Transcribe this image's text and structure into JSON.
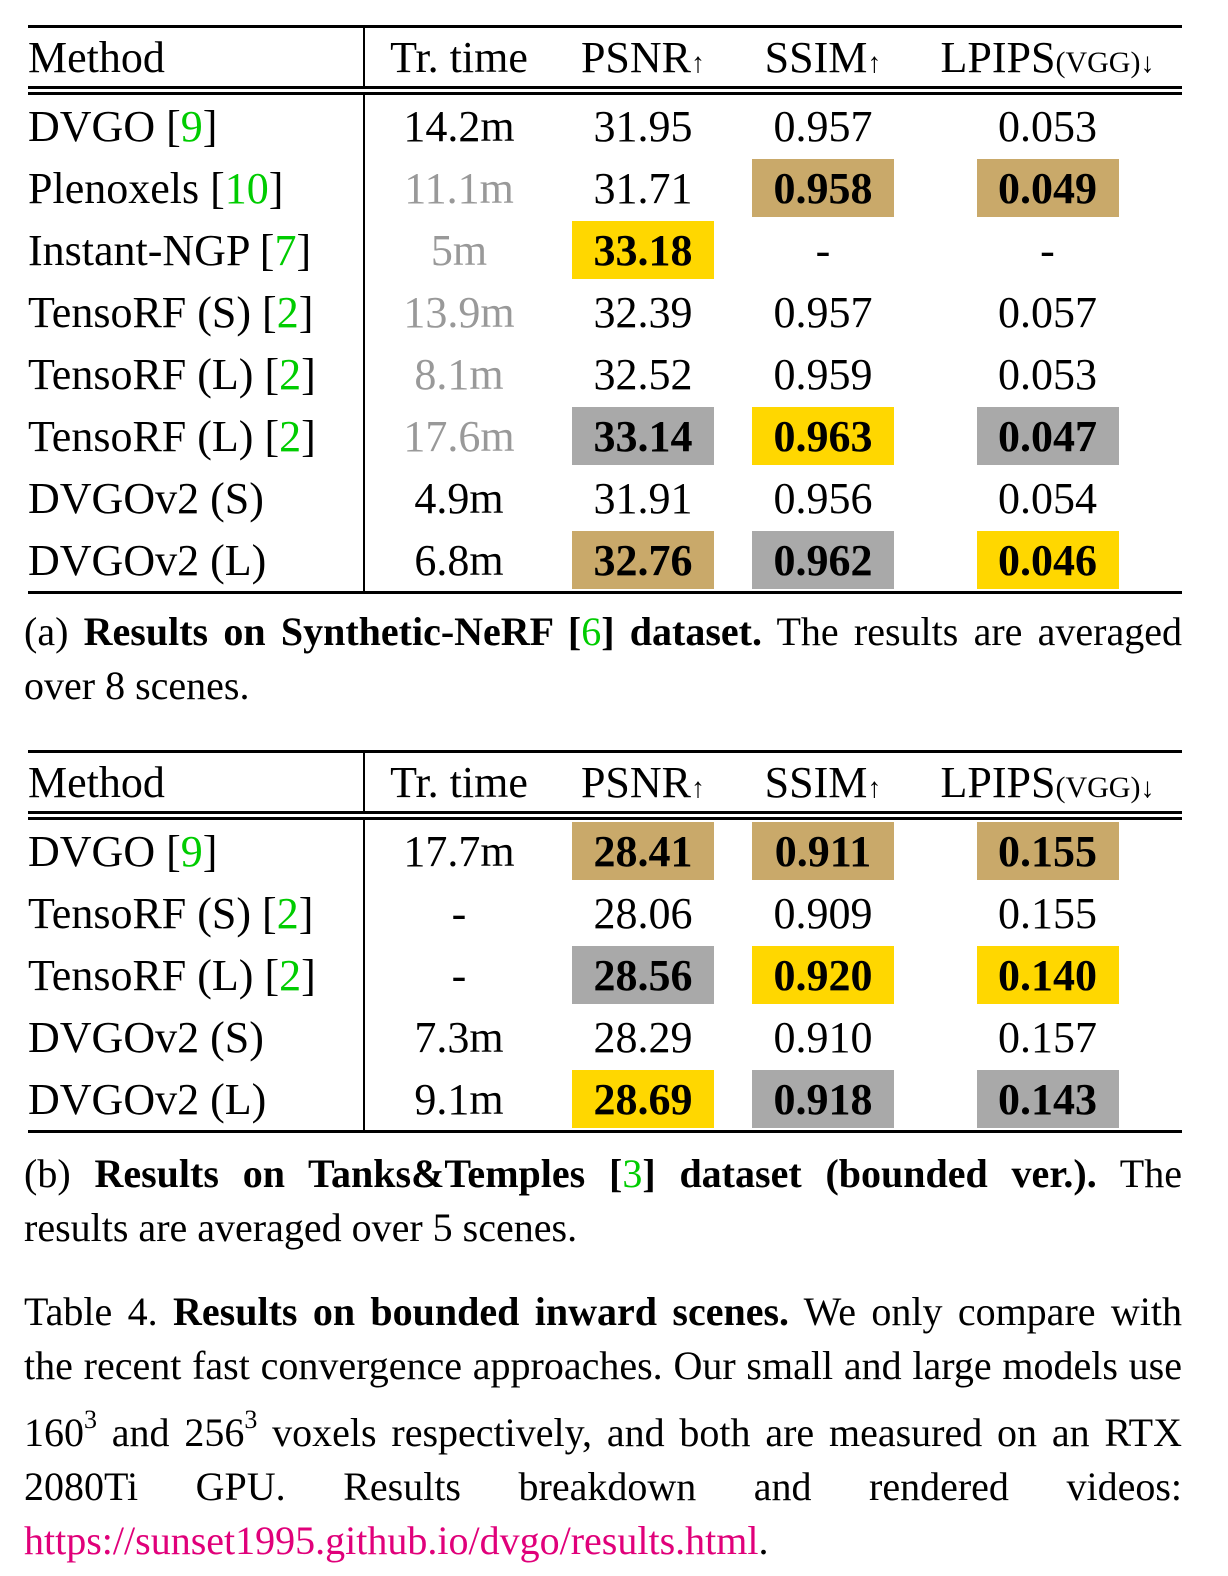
{
  "tables": [
    {
      "header": [
        [
          {
            "text": "Method"
          }
        ],
        [
          {
            "text": "Tr. time"
          }
        ],
        [
          {
            "text": "PSNR"
          },
          {
            "text": "↑",
            "style": "arrow"
          }
        ],
        [
          {
            "text": "SSIM"
          },
          {
            "text": "↑",
            "style": "arrow"
          }
        ],
        [
          {
            "text": "LPIPS"
          },
          {
            "text": "(VGG)",
            "style": "small"
          },
          {
            "text": "↓",
            "style": "arrow"
          }
        ]
      ],
      "rows": [
        {
          "method": [
            {
              "text": "DVGO ["
            },
            {
              "text": "9",
              "style": "cite"
            },
            {
              "text": "]"
            }
          ],
          "cells": [
            {
              "text": "14.2m"
            },
            {
              "text": "31.95"
            },
            {
              "text": "0.957"
            },
            {
              "text": "0.053"
            }
          ]
        },
        {
          "method": [
            {
              "text": "Plenoxels ["
            },
            {
              "text": "10",
              "style": "cite"
            },
            {
              "text": "]"
            }
          ],
          "cells": [
            {
              "text": "11.1m",
              "color": "#999999"
            },
            {
              "text": "31.71"
            },
            {
              "text": "0.958",
              "highlight": "#c9a96a"
            },
            {
              "text": "0.049",
              "highlight": "#c9a96a"
            }
          ]
        },
        {
          "method": [
            {
              "text": "Instant-NGP ["
            },
            {
              "text": "7",
              "style": "cite"
            },
            {
              "text": "]"
            }
          ],
          "cells": [
            {
              "text": "5m",
              "color": "#999999"
            },
            {
              "text": "33.18",
              "highlight": "#ffd700"
            },
            {
              "text": "-"
            },
            {
              "text": "-"
            }
          ]
        },
        {
          "method": [
            {
              "text": "TensoRF (S) ["
            },
            {
              "text": "2",
              "style": "cite"
            },
            {
              "text": "]"
            }
          ],
          "cells": [
            {
              "text": "13.9m",
              "color": "#999999"
            },
            {
              "text": "32.39"
            },
            {
              "text": "0.957"
            },
            {
              "text": "0.057"
            }
          ]
        },
        {
          "method": [
            {
              "text": "TensoRF (L) ["
            },
            {
              "text": "2",
              "style": "cite"
            },
            {
              "text": "]"
            }
          ],
          "cells": [
            {
              "text": "8.1m",
              "color": "#999999"
            },
            {
              "text": "32.52"
            },
            {
              "text": "0.959"
            },
            {
              "text": "0.053"
            }
          ]
        },
        {
          "method": [
            {
              "text": "TensoRF (L) ["
            },
            {
              "text": "2",
              "style": "cite"
            },
            {
              "text": "]"
            }
          ],
          "cells": [
            {
              "text": "17.6m",
              "color": "#999999"
            },
            {
              "text": "33.14",
              "highlight": "#a9a9a9"
            },
            {
              "text": "0.963",
              "highlight": "#ffd700"
            },
            {
              "text": "0.047",
              "highlight": "#a9a9a9"
            }
          ]
        },
        {
          "method": [
            {
              "text": "DVGOv2 (S)"
            }
          ],
          "cells": [
            {
              "text": "4.9m"
            },
            {
              "text": "31.91"
            },
            {
              "text": "0.956"
            },
            {
              "text": "0.054"
            }
          ]
        },
        {
          "method": [
            {
              "text": "DVGOv2 (L)"
            }
          ],
          "cells": [
            {
              "text": "6.8m"
            },
            {
              "text": "32.76",
              "highlight": "#c9a96a"
            },
            {
              "text": "0.962",
              "highlight": "#a9a9a9"
            },
            {
              "text": "0.046",
              "highlight": "#ffd700"
            }
          ]
        }
      ],
      "caption": [
        {
          "text": "(a) "
        },
        {
          "text": "Results on Synthetic-NeRF [",
          "style": "bold"
        },
        {
          "text": "6",
          "style": "cite"
        },
        {
          "text": "] dataset.",
          "style": "bold"
        },
        {
          "text": " The results are aver­aged over 8 scenes."
        }
      ]
    },
    {
      "header": [
        [
          {
            "text": "Method"
          }
        ],
        [
          {
            "text": "Tr. time"
          }
        ],
        [
          {
            "text": "PSNR"
          },
          {
            "text": "↑",
            "style": "arrow"
          }
        ],
        [
          {
            "text": "SSIM"
          },
          {
            "text": "↑",
            "style": "arrow"
          }
        ],
        [
          {
            "text": "LPIPS"
          },
          {
            "text": "(VGG)",
            "style": "small"
          },
          {
            "text": "↓",
            "style": "arrow"
          }
        ]
      ],
      "rows": [
        {
          "method": [
            {
              "text": "DVGO ["
            },
            {
              "text": "9",
              "style": "cite"
            },
            {
              "text": "]"
            }
          ],
          "cells": [
            {
              "text": "17.7m"
            },
            {
              "text": "28.41",
              "highlight": "#c9a96a"
            },
            {
              "text": "0.911",
              "highlight": "#c9a96a"
            },
            {
              "text": "0.155",
              "highlight": "#c9a96a"
            }
          ]
        },
        {
          "method": [
            {
              "text": "TensoRF (S) ["
            },
            {
              "text": "2",
              "style": "cite"
            },
            {
              "text": "]"
            }
          ],
          "cells": [
            {
              "text": "-"
            },
            {
              "text": "28.06"
            },
            {
              "text": "0.909"
            },
            {
              "text": "0.155"
            }
          ]
        },
        {
          "method": [
            {
              "text": "TensoRF (L) ["
            },
            {
              "text": "2",
              "style": "cite"
            },
            {
              "text": "]"
            }
          ],
          "cells": [
            {
              "text": "-"
            },
            {
              "text": "28.56",
              "highlight": "#a9a9a9"
            },
            {
              "text": "0.920",
              "highlight": "#ffd700"
            },
            {
              "text": "0.140",
              "highlight": "#ffd700"
            }
          ]
        },
        {
          "method": [
            {
              "text": "DVGOv2 (S)"
            }
          ],
          "cells": [
            {
              "text": "7.3m"
            },
            {
              "text": "28.29"
            },
            {
              "text": "0.910"
            },
            {
              "text": "0.157"
            }
          ]
        },
        {
          "method": [
            {
              "text": "DVGOv2 (L)"
            }
          ],
          "cells": [
            {
              "text": "9.1m"
            },
            {
              "text": "28.69",
              "highlight": "#ffd700"
            },
            {
              "text": "0.918",
              "highlight": "#a9a9a9"
            },
            {
              "text": "0.143",
              "highlight": "#a9a9a9"
            }
          ]
        }
      ],
      "caption": [
        {
          "text": "(b) "
        },
        {
          "text": "Results on Tanks&Temples [",
          "style": "bold"
        },
        {
          "text": "3",
          "style": "cite"
        },
        {
          "text": "] dataset (bounded ver.).",
          "style": "bold"
        },
        {
          "text": " The results are averaged over 5 scenes."
        }
      ]
    }
  ],
  "caption": [
    {
      "text": "Table 4.  "
    },
    {
      "text": "Results on bounded inward scenes.",
      "style": "bold"
    },
    {
      "text": " We only compare with the recent fast convergence approaches. Our small and large models use 160"
    },
    {
      "text": "3",
      "style": "sup"
    },
    {
      "text": " and 256"
    },
    {
      "text": "3",
      "style": "sup"
    },
    {
      "text": " voxels respectively, and both are mea­sured on an RTX 2080Ti GPU. Results breakdown and rendered videos: "
    },
    {
      "text": "https://sunset1995.github.io/dvgo/results.html",
      "style": "link"
    },
    {
      "text": "."
    }
  ]
}
